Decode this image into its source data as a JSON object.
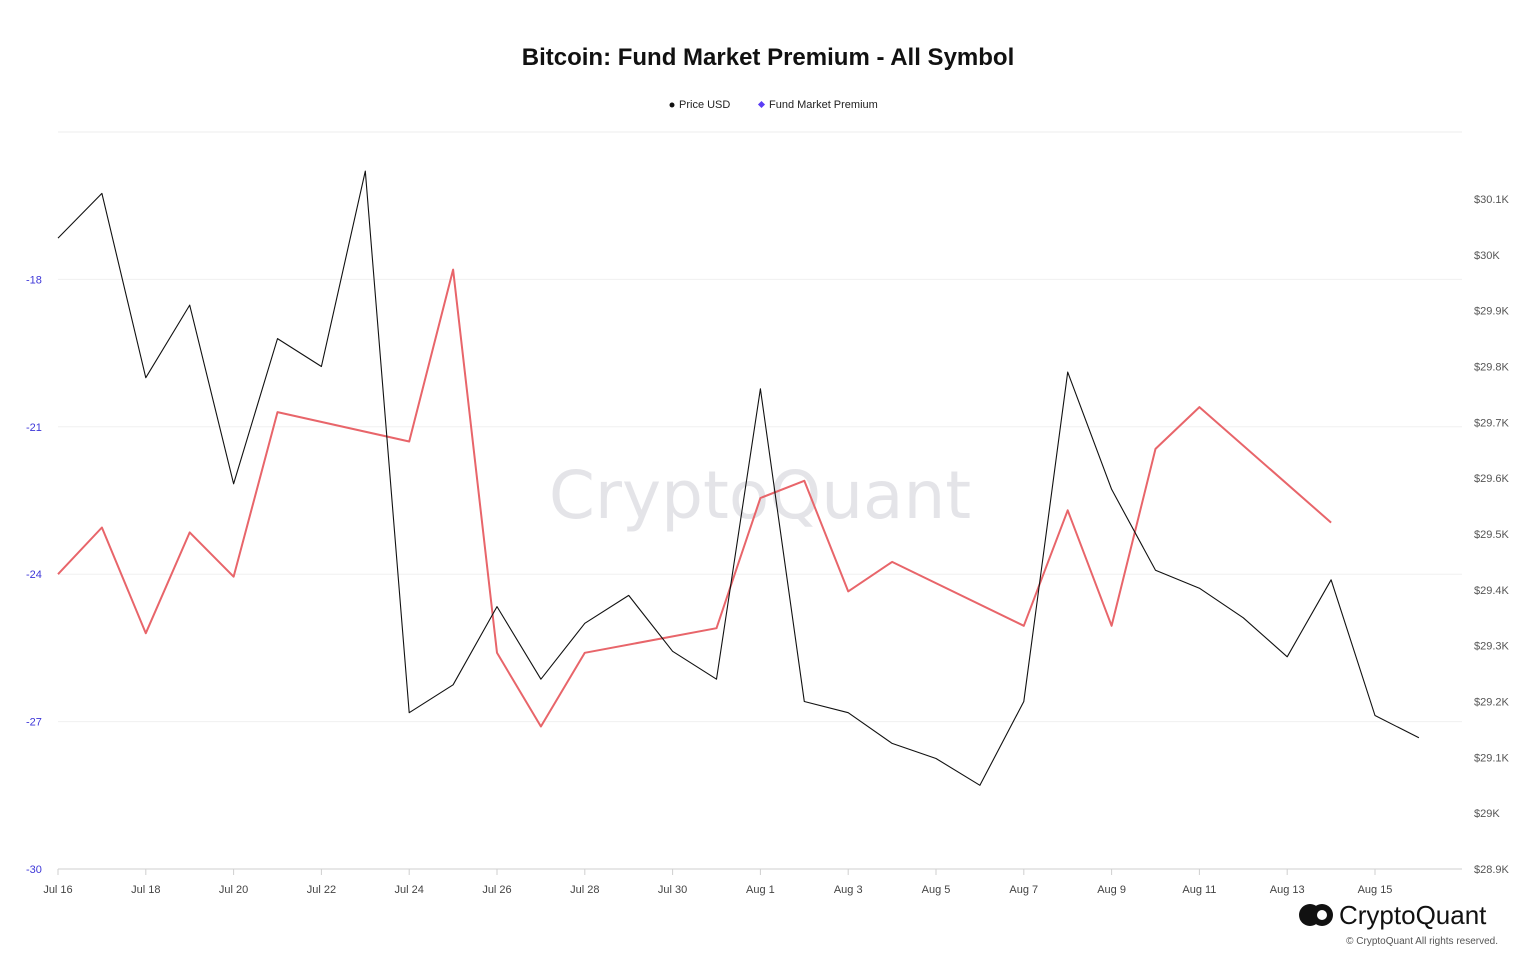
{
  "chart_data": {
    "type": "line",
    "title": "Bitcoin: Fund Market Premium - All Symbol",
    "legend": {
      "placement": "top-center",
      "entries": [
        {
          "name": "Price USD",
          "color": "#111111"
        },
        {
          "name": "Fund Market Premium",
          "color": "#5b3df5"
        }
      ]
    },
    "x_ticks": [
      "Jul 16",
      "Jul 18",
      "Jul 20",
      "Jul 22",
      "Jul 24",
      "Jul 26",
      "Jul 28",
      "Jul 30",
      "Aug 1",
      "Aug 3",
      "Aug 5",
      "Aug 7",
      "Aug 9",
      "Aug 11",
      "Aug 13",
      "Aug 15"
    ],
    "x": [
      "Jul 16",
      "Jul 17",
      "Jul 18",
      "Jul 19",
      "Jul 20",
      "Jul 21",
      "Jul 22",
      "Jul 23",
      "Jul 24",
      "Jul 25",
      "Jul 26",
      "Jul 27",
      "Jul 28",
      "Jul 29",
      "Jul 30",
      "Jul 31",
      "Aug 1",
      "Aug 2",
      "Aug 3",
      "Aug 4",
      "Aug 5",
      "Aug 6",
      "Aug 7",
      "Aug 8",
      "Aug 9",
      "Aug 10",
      "Aug 11",
      "Aug 12",
      "Aug 13",
      "Aug 14",
      "Aug 15",
      "Aug 16"
    ],
    "y_left": {
      "ticks": [
        "-18",
        "-21",
        "-24",
        "-27",
        "-30"
      ],
      "range": [
        -30,
        -15
      ]
    },
    "y_right": {
      "ticks": [
        "$30.1K",
        "$30K",
        "$29.9K",
        "$29.8K",
        "$29.7K",
        "$29.6K",
        "$29.5K",
        "$29.4K",
        "$29.3K",
        "$29.2K",
        "$29.1K",
        "$29K",
        "$28.9K"
      ],
      "range": [
        28900,
        30220
      ]
    },
    "series": [
      {
        "name": "Price USD",
        "axis": "right",
        "color": "#111111",
        "values": [
          30030,
          30110,
          29780,
          29910,
          29590,
          29850,
          29800,
          30150,
          29180,
          29230,
          29370,
          29240,
          29340,
          29390,
          29290,
          29240,
          29760,
          29200,
          29180,
          29125,
          29098,
          29050,
          29200,
          29790,
          29580,
          29435,
          29403,
          29350,
          29280,
          29418,
          29175,
          29135
        ]
      },
      {
        "name": "Fund Market Premium",
        "axis": "left",
        "color": "#e8656a",
        "values": [
          -24.0,
          -23.05,
          -25.2,
          -23.15,
          -24.05,
          -20.7,
          null,
          null,
          -21.3,
          -17.8,
          -25.6,
          -27.1,
          -25.6,
          null,
          null,
          -25.1,
          -22.45,
          -22.1,
          -24.35,
          -23.75,
          null,
          null,
          -25.05,
          -22.7,
          -25.05,
          -21.45,
          -20.6,
          null,
          null,
          -22.95,
          null,
          null
        ]
      }
    ]
  },
  "watermark": "CryptoQuant",
  "brand": {
    "name": "CryptoQuant",
    "copyright": "© CryptoQuant All rights reserved."
  }
}
